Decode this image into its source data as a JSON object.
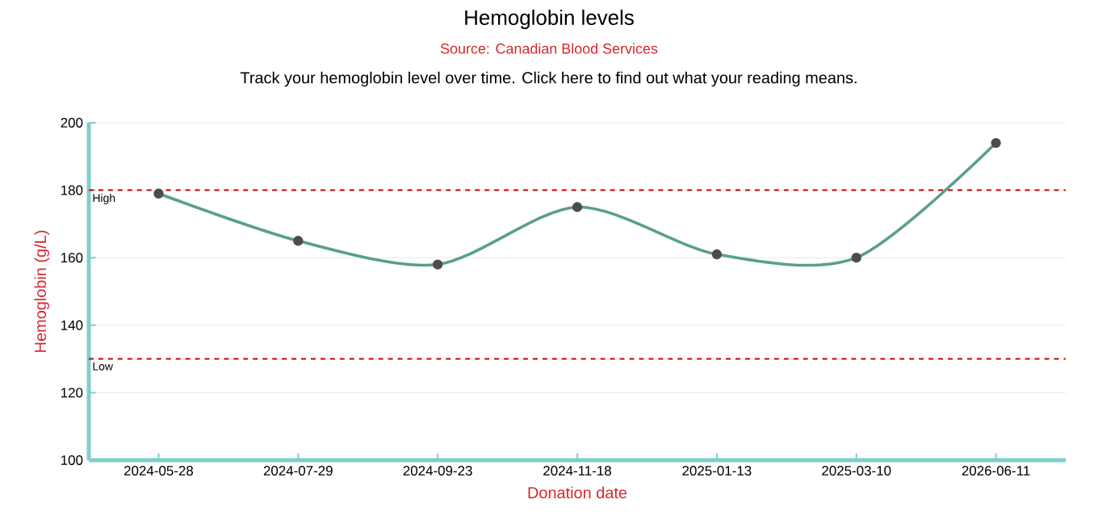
{
  "chart_data": {
    "type": "line",
    "title": "Hemoglobin levels",
    "subtitle": "Track your hemoglobin level over time. Click here to find out what your reading means.",
    "annotations": [
      "Source: Canadian Blood Services"
    ],
    "xlabel": "Donation date",
    "ylabel": "Hemoglobin (g/L)",
    "categories": [
      "2024-05-28",
      "2024-07-29",
      "2024-09-23",
      "2024-11-18",
      "2025-01-13",
      "2025-03-10",
      "2026-06-11"
    ],
    "series": [
      {
        "color": "#5a9e8f",
        "values": [
          179,
          165,
          158,
          175,
          161,
          160,
          194
        ]
      }
    ],
    "ylim": [
      100,
      200
    ],
    "yticks": [
      100,
      120,
      140,
      160,
      180,
      200
    ],
    "grid": "y",
    "marker": "circle",
    "line_style": "solid",
    "ref_lines": [
      {
        "axis": "y",
        "value": 180,
        "label": "High",
        "color": "#cc0000",
        "line_style": "dashed"
      },
      {
        "axis": "y",
        "value": 130,
        "label": "Low",
        "color": "#cc0000",
        "line_style": "dashed"
      }
    ]
  }
}
